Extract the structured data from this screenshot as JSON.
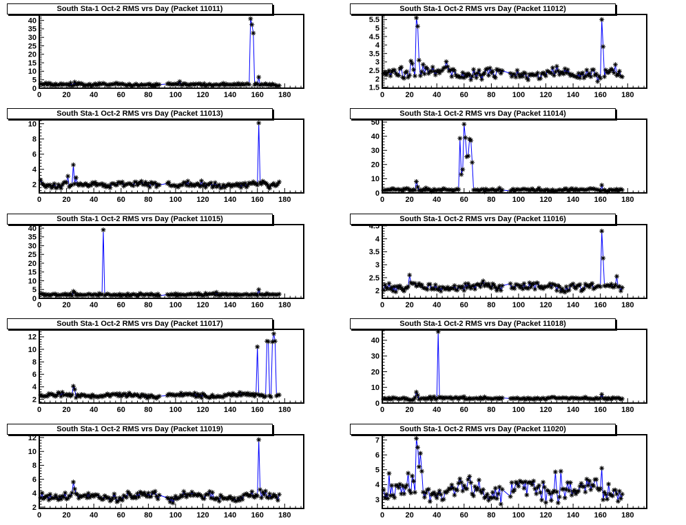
{
  "figure": {
    "background": "#ffffff",
    "line_color": "#0000ff",
    "marker_color": "#000000",
    "marker": "asterisk",
    "title_color": "#000000",
    "frame_color": "#000000"
  },
  "chart_data": [
    {
      "type": "line",
      "title": "South Sta-1 Oct-2 RMS vrs Day (Packet 11011)",
      "xlim": [
        0,
        194
      ],
      "xticks": [
        0,
        20,
        40,
        60,
        80,
        100,
        120,
        140,
        160,
        180
      ],
      "ylim": [
        0,
        43.5
      ],
      "yticks": [
        0,
        5,
        10,
        15,
        20,
        25,
        30,
        35,
        40
      ],
      "x_range": [
        1,
        176
      ],
      "gap": [
        89,
        93
      ],
      "baseline": 2.1,
      "noise_amp": 1.1,
      "wave_amp": 0.15,
      "spikes": [
        [
          26,
          3.6
        ],
        [
          155,
          41
        ],
        [
          156,
          37.5
        ],
        [
          157,
          32.5
        ],
        [
          161,
          6.5
        ]
      ]
    },
    {
      "type": "line",
      "title": "South Sta-1 Oct-2 RMS vrs Day (Packet 11012)",
      "xlim": [
        0,
        194
      ],
      "xticks": [
        0,
        20,
        40,
        60,
        80,
        100,
        120,
        140,
        160,
        180
      ],
      "ylim": [
        1.45,
        5.8
      ],
      "yticks": [
        1.5,
        2,
        2.5,
        3,
        3.5,
        4,
        4.5,
        5,
        5.5
      ],
      "x_range": [
        1,
        176
      ],
      "gap": [
        89,
        93
      ],
      "baseline": 2.32,
      "noise_amp": 0.42,
      "wave_amp": 0.12,
      "spikes": [
        [
          21,
          3.05
        ],
        [
          22,
          2.9
        ],
        [
          25,
          5.6
        ],
        [
          26,
          5.1
        ],
        [
          27,
          3.1
        ],
        [
          30,
          2.85
        ],
        [
          161,
          5.5
        ],
        [
          162,
          3.9
        ]
      ]
    },
    {
      "type": "line",
      "title": "South Sta-1 Oct-2 RMS vrs Day (Packet 11013)",
      "xlim": [
        0,
        194
      ],
      "xticks": [
        0,
        20,
        40,
        60,
        80,
        100,
        120,
        140,
        160,
        180
      ],
      "ylim": [
        0.9,
        10.6
      ],
      "yticks": [
        2,
        4,
        6,
        8,
        10
      ],
      "x_range": [
        1,
        176
      ],
      "gap": [
        89,
        93
      ],
      "baseline": 1.95,
      "noise_amp": 0.5,
      "wave_amp": 0.1,
      "spikes": [
        [
          21,
          3.1
        ],
        [
          25,
          4.6
        ],
        [
          27,
          2.9
        ],
        [
          161,
          10.1
        ]
      ]
    },
    {
      "type": "line",
      "title": "South Sta-1 Oct-2 RMS vrs Day (Packet 11014)",
      "xlim": [
        0,
        194
      ],
      "xticks": [
        0,
        20,
        40,
        60,
        80,
        100,
        120,
        140,
        160,
        180
      ],
      "ylim": [
        0,
        52
      ],
      "yticks": [
        0,
        10,
        20,
        30,
        40,
        50
      ],
      "x_range": [
        1,
        176
      ],
      "gap": [
        89,
        93
      ],
      "baseline": 2.1,
      "noise_amp": 1.2,
      "wave_amp": 0.2,
      "spikes": [
        [
          25,
          8
        ],
        [
          26,
          4.2
        ],
        [
          57,
          38.5
        ],
        [
          58,
          13
        ],
        [
          59,
          16.5
        ],
        [
          60,
          48.5
        ],
        [
          61,
          39
        ],
        [
          62,
          25.5
        ],
        [
          63,
          26
        ],
        [
          64,
          38
        ],
        [
          65,
          37
        ],
        [
          66,
          21.5
        ],
        [
          161,
          5.5
        ]
      ]
    },
    {
      "type": "line",
      "title": "South Sta-1 Oct-2 RMS vrs Day (Packet 11015)",
      "xlim": [
        0,
        194
      ],
      "xticks": [
        0,
        20,
        40,
        60,
        80,
        100,
        120,
        140,
        160,
        180
      ],
      "ylim": [
        0,
        42
      ],
      "yticks": [
        0,
        5,
        10,
        15,
        20,
        25,
        30,
        35,
        40
      ],
      "x_range": [
        1,
        176
      ],
      "gap": [
        89,
        93
      ],
      "baseline": 2.1,
      "noise_amp": 0.95,
      "wave_amp": 0.15,
      "spikes": [
        [
          25,
          4
        ],
        [
          26,
          3.3
        ],
        [
          47,
          39
        ],
        [
          161,
          5
        ]
      ]
    },
    {
      "type": "line",
      "title": "South Sta-1 Oct-2 RMS vrs Day (Packet 11016)",
      "xlim": [
        0,
        194
      ],
      "xticks": [
        0,
        20,
        40,
        60,
        80,
        100,
        120,
        140,
        160,
        180
      ],
      "ylim": [
        1.7,
        4.55
      ],
      "yticks": [
        2,
        2.5,
        3,
        3.5,
        4,
        4.5
      ],
      "x_range": [
        1,
        176
      ],
      "gap": [
        89,
        93
      ],
      "baseline": 2.15,
      "noise_amp": 0.2,
      "wave_amp": 0.05,
      "spikes": [
        [
          20,
          2.6
        ],
        [
          161,
          4.3
        ],
        [
          162,
          3.25
        ],
        [
          172,
          2.55
        ]
      ]
    },
    {
      "type": "line",
      "title": "South Sta-1 Oct-2 RMS vrs Day (Packet 11017)",
      "xlim": [
        0,
        194
      ],
      "xticks": [
        0,
        20,
        40,
        60,
        80,
        100,
        120,
        140,
        160,
        180
      ],
      "ylim": [
        1.4,
        13.2
      ],
      "yticks": [
        2,
        4,
        6,
        8,
        10,
        12
      ],
      "x_range": [
        1,
        176
      ],
      "gap": [
        89,
        93
      ],
      "baseline": 2.6,
      "noise_amp": 0.42,
      "wave_amp": 0.1,
      "spikes": [
        [
          25,
          4.1
        ],
        [
          26,
          3.6
        ],
        [
          160,
          10.4
        ],
        [
          167,
          11.3
        ],
        [
          168,
          11.25
        ],
        [
          171,
          11.2
        ],
        [
          172,
          12.5
        ],
        [
          173,
          11.3
        ]
      ]
    },
    {
      "type": "line",
      "title": "South Sta-1 Oct-2 RMS vrs Day (Packet 11018)",
      "xlim": [
        0,
        194
      ],
      "xticks": [
        0,
        20,
        40,
        60,
        80,
        100,
        120,
        140,
        160,
        180
      ],
      "ylim": [
        0,
        47
      ],
      "yticks": [
        0,
        10,
        20,
        30,
        40
      ],
      "x_range": [
        1,
        176
      ],
      "gap": [
        89,
        93
      ],
      "baseline": 3.0,
      "noise_amp": 1.1,
      "wave_amp": 0.2,
      "spikes": [
        [
          25,
          7
        ],
        [
          26,
          5
        ],
        [
          41,
          45.5
        ],
        [
          161,
          5.5
        ]
      ]
    },
    {
      "type": "line",
      "title": "South Sta-1 Oct-2 RMS vrs Day (Packet 11019)",
      "xlim": [
        0,
        194
      ],
      "xticks": [
        0,
        20,
        40,
        60,
        80,
        100,
        120,
        140,
        160,
        180
      ],
      "ylim": [
        1.8,
        12.4
      ],
      "yticks": [
        2,
        4,
        6,
        8,
        10,
        12
      ],
      "x_range": [
        1,
        176
      ],
      "gap": [
        89,
        93
      ],
      "baseline": 3.5,
      "noise_amp": 0.7,
      "wave_amp": 0.3,
      "spikes": [
        [
          25,
          5.6
        ],
        [
          26,
          4.6
        ],
        [
          161,
          11.7
        ],
        [
          162,
          4.5
        ]
      ]
    },
    {
      "type": "line",
      "title": "South Sta-1 Oct-2 RMS vrs Day (Packet 11020)",
      "xlim": [
        0,
        194
      ],
      "xticks": [
        0,
        20,
        40,
        60,
        80,
        100,
        120,
        140,
        160,
        180
      ],
      "ylim": [
        2.4,
        7.35
      ],
      "yticks": [
        3,
        4,
        5,
        6,
        7
      ],
      "x_range": [
        1,
        176
      ],
      "gap": [
        89,
        93
      ],
      "baseline": 3.6,
      "noise_amp": 0.8,
      "wave_amp": 0.35,
      "spikes": [
        [
          25,
          7.1
        ],
        [
          26,
          6.5
        ],
        [
          27,
          5.2
        ],
        [
          28,
          6.1
        ],
        [
          29,
          4.9
        ],
        [
          127,
          4.85
        ],
        [
          131,
          4.9
        ],
        [
          161,
          5.1
        ]
      ]
    }
  ]
}
